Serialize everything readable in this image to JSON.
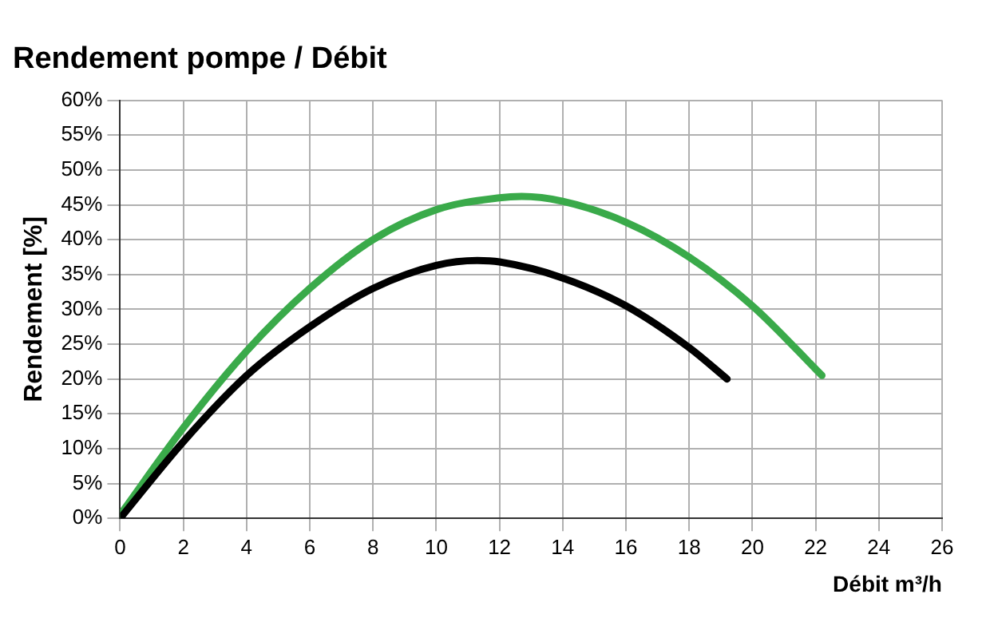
{
  "chart_data": {
    "type": "line",
    "title": "Rendement pompe / Débit",
    "xlabel": "Débit m³/h",
    "ylabel": "Rendement [%]",
    "xlim": [
      0,
      26
    ],
    "xticks": [
      0,
      2,
      4,
      6,
      8,
      10,
      12,
      14,
      16,
      18,
      20,
      22,
      24,
      26
    ],
    "ylim": [
      0,
      60
    ],
    "yticks": [
      {
        "value": 0,
        "label": "0%"
      },
      {
        "value": 5,
        "label": "5%"
      },
      {
        "value": 10,
        "label": "10%"
      },
      {
        "value": 15,
        "label": "15%"
      },
      {
        "value": 20,
        "label": "20%"
      },
      {
        "value": 25,
        "label": "25%"
      },
      {
        "value": 30,
        "label": "30%"
      },
      {
        "value": 35,
        "label": "35%"
      },
      {
        "value": 40,
        "label": "40%"
      },
      {
        "value": 45,
        "label": "45%"
      },
      {
        "value": 50,
        "label": "50%"
      },
      {
        "value": 55,
        "label": "55%"
      },
      {
        "value": 60,
        "label": "60%"
      }
    ],
    "grid": true,
    "legend": false,
    "marker": "none",
    "line_style": "solid",
    "series": [
      {
        "color": "#000000",
        "x": [
          0,
          2,
          4,
          6,
          8,
          10,
          11.3,
          12,
          14,
          16,
          18,
          19.2
        ],
        "values": [
          0,
          11,
          20.5,
          27.5,
          33,
          36.3,
          37,
          36.8,
          34.5,
          30.5,
          24.5,
          20
        ]
      },
      {
        "color": "#3aaa4a",
        "x": [
          0,
          2,
          4,
          6,
          8,
          10,
          12,
          12.7,
          14,
          16,
          18,
          20,
          22.2
        ],
        "values": [
          0.5,
          13,
          24,
          33,
          40,
          44.3,
          46,
          46.2,
          45.5,
          42.5,
          37.5,
          30.5,
          20.5
        ]
      }
    ]
  }
}
